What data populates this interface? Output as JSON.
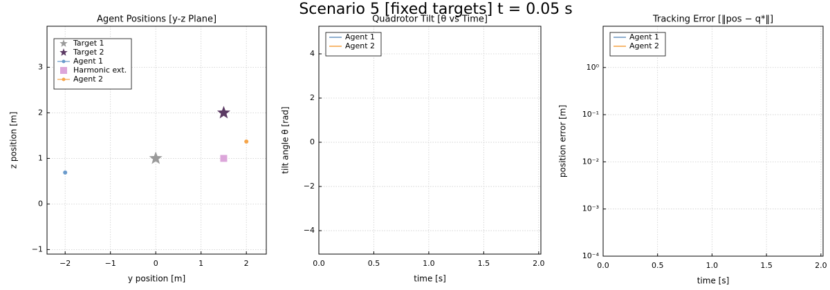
{
  "title": "Scenario 5 [fixed targets]  t = 0.05 s",
  "chart_data": [
    {
      "type": "scatter",
      "title": "Agent Positions [y-z Plane]",
      "xlabel": "y position [m]",
      "ylabel": "z position [m]",
      "xlim": [
        -2.4,
        2.44
      ],
      "ylim": [
        -1.1,
        3.9
      ],
      "xticks": [
        {
          "value": -2,
          "label": "−2"
        },
        {
          "value": -1,
          "label": "−1"
        },
        0,
        1,
        2
      ],
      "yticks": [
        {
          "value": -1,
          "label": "−1"
        },
        0,
        1,
        2,
        3
      ],
      "grid": true,
      "legend": "upper left",
      "series": [
        {
          "name": "Target 1",
          "color": "#9a9a9a",
          "marker": "star",
          "x": [
            0
          ],
          "values": [
            1
          ]
        },
        {
          "name": "Target 2",
          "color": "#5b3a63",
          "marker": "star",
          "x": [
            1.5
          ],
          "values": [
            2
          ]
        },
        {
          "name": "Agent 1",
          "color": "#6a9acb",
          "marker": "circle",
          "line": true,
          "x": [
            -2
          ],
          "values": [
            0.69
          ]
        },
        {
          "name": "Harmonic ext.",
          "color": "#dca6da",
          "marker": "square",
          "x": [
            1.5
          ],
          "values": [
            1
          ]
        },
        {
          "name": "Agent 2",
          "color": "#f5a54a",
          "marker": "circle",
          "line": true,
          "x": [
            2
          ],
          "values": [
            1.37
          ]
        }
      ]
    },
    {
      "type": "line",
      "title": "Quadrotor Tilt [θ vs Time]",
      "xlabel": "time [s]",
      "ylabel": "tilt angle θ [rad]",
      "xlim": [
        0,
        2.02
      ],
      "ylim": [
        -5.06,
        5.25
      ],
      "xticks": [
        {
          "value": 0,
          "label": "0.0"
        },
        0.5,
        {
          "value": 1,
          "label": "1.0"
        },
        1.5,
        {
          "value": 2,
          "label": "2.0"
        }
      ],
      "yticks": [
        {
          "value": -4,
          "label": "−4"
        },
        {
          "value": -2,
          "label": "−2"
        },
        0,
        2,
        4
      ],
      "grid": true,
      "legend": "upper left",
      "x": [],
      "series": [
        {
          "name": "Agent 1",
          "color": "#4a7fb5",
          "values": []
        },
        {
          "name": "Agent 2",
          "color": "#f28e1c",
          "values": []
        }
      ]
    },
    {
      "type": "line",
      "title": "Tracking Error [‖pos − q*‖]",
      "xlabel": "time [s]",
      "ylabel": "position error [m]",
      "xlim": [
        0,
        2.02
      ],
      "ylim": [
        0.0001,
        7.5
      ],
      "ylog": true,
      "xticks": [
        {
          "value": 0,
          "label": "0.0"
        },
        0.5,
        {
          "value": 1,
          "label": "1.0"
        },
        1.5,
        {
          "value": 2,
          "label": "2.0"
        }
      ],
      "yticks": [
        {
          "value": 0.0001,
          "label": "10⁻⁴"
        },
        {
          "value": 0.001,
          "label": "10⁻³"
        },
        {
          "value": 0.01,
          "label": "10⁻²"
        },
        {
          "value": 0.1,
          "label": "10⁻¹"
        },
        {
          "value": 1,
          "label": "10⁰"
        }
      ],
      "grid": true,
      "legend": "upper left",
      "x": [],
      "series": [
        {
          "name": "Agent 1",
          "color": "#4a7fb5",
          "values": []
        },
        {
          "name": "Agent 2",
          "color": "#f28e1c",
          "values": []
        }
      ]
    }
  ]
}
